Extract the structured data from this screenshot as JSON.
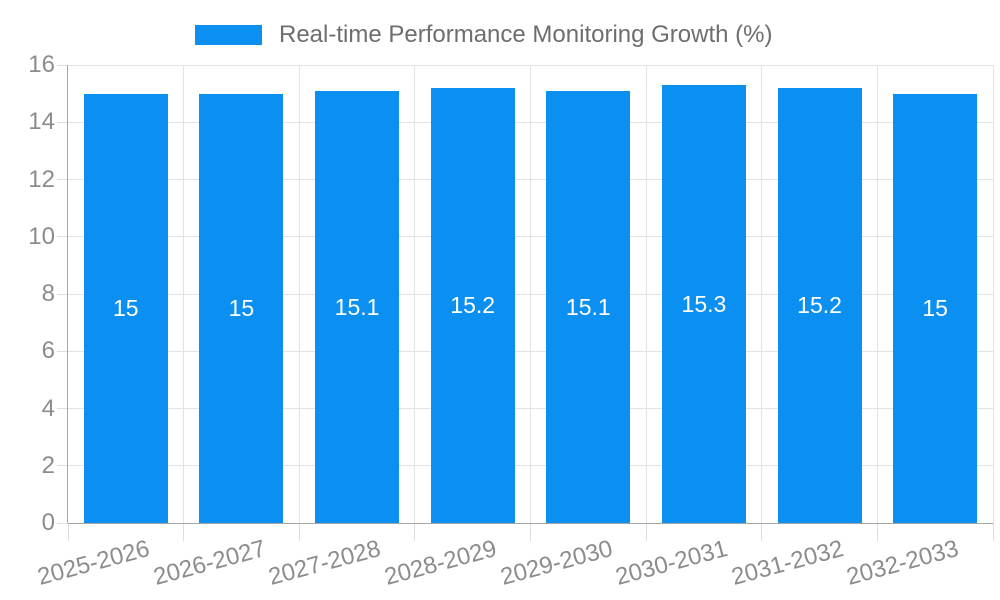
{
  "legend": {
    "label": "Real-time Performance Monitoring Growth (%)"
  },
  "chart_data": {
    "type": "bar",
    "title": "Real-time Performance Monitoring Growth (%)",
    "categories": [
      "2025-2026",
      "2026-2027",
      "2027-2028",
      "2028-2029",
      "2029-2030",
      "2030-2031",
      "2031-2032",
      "2032-2033"
    ],
    "values": [
      15,
      15,
      15.1,
      15.2,
      15.1,
      15.3,
      15.2,
      15
    ],
    "value_labels": [
      "15",
      "15",
      "15.1",
      "15.2",
      "15.1",
      "15.3",
      "15.2",
      "15"
    ],
    "xlabel": "",
    "ylabel": "",
    "ylim": [
      0,
      16
    ],
    "yticks": [
      0,
      2,
      4,
      6,
      8,
      10,
      12,
      14,
      16
    ],
    "grid": true,
    "legend_position": "top-center",
    "x_label_rotation_deg": -15,
    "colors": {
      "bar": "#0b90f2",
      "grid": "#e3e3e3",
      "tick": "#dddddd",
      "axis": "#a6a6a6",
      "tick_label": "#8c8c8c",
      "legend_text": "#6e6e6e",
      "bar_label": "#ffffff",
      "background": "#ffffff"
    }
  }
}
